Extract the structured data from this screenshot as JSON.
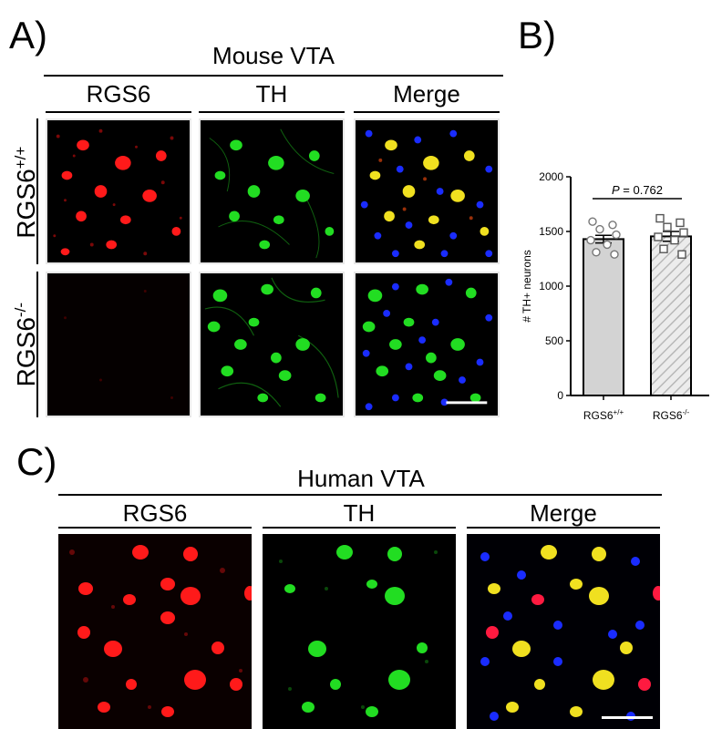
{
  "panels": {
    "a": {
      "letter": "A)",
      "title": "Mouse VTA",
      "columns": [
        "RGS6",
        "TH",
        "Merge"
      ],
      "rows": [
        {
          "base": "RGS6",
          "sup": "+/+"
        },
        {
          "base": "RGS6",
          "sup": "-/-"
        }
      ]
    },
    "b": {
      "letter": "B)"
    },
    "c": {
      "letter": "C)",
      "title": "Human VTA",
      "columns": [
        "RGS6",
        "TH",
        "Merge"
      ]
    }
  },
  "chart_data": {
    "type": "bar",
    "ylabel": "# TH+ neurons",
    "ylim": [
      0,
      2000
    ],
    "yticks": [
      0,
      500,
      1000,
      1500,
      2000
    ],
    "categories": [
      {
        "base": "RGS6",
        "sup": "+/+"
      },
      {
        "base": "RGS6",
        "sup": "-/-"
      }
    ],
    "values": [
      1430,
      1455
    ],
    "sem": [
      35,
      45
    ],
    "points": [
      [
        1590,
        1560,
        1520,
        1470,
        1420,
        1380,
        1310,
        1290
      ],
      [
        1620,
        1580,
        1540,
        1490,
        1450,
        1420,
        1340,
        1290
      ]
    ],
    "bar_fill": [
      "#d3d3d3",
      "hatched-light-gray"
    ],
    "markers": [
      "circle",
      "square"
    ],
    "annotation": {
      "label": "P",
      "text": " = 0.762"
    }
  },
  "colors": {
    "red_channel": "#ff1a1a",
    "green_channel": "#22dd22",
    "blue_channel": "#1a2cff",
    "yellow_merge": "#f0e020",
    "scale_bar": "#ffffff"
  }
}
